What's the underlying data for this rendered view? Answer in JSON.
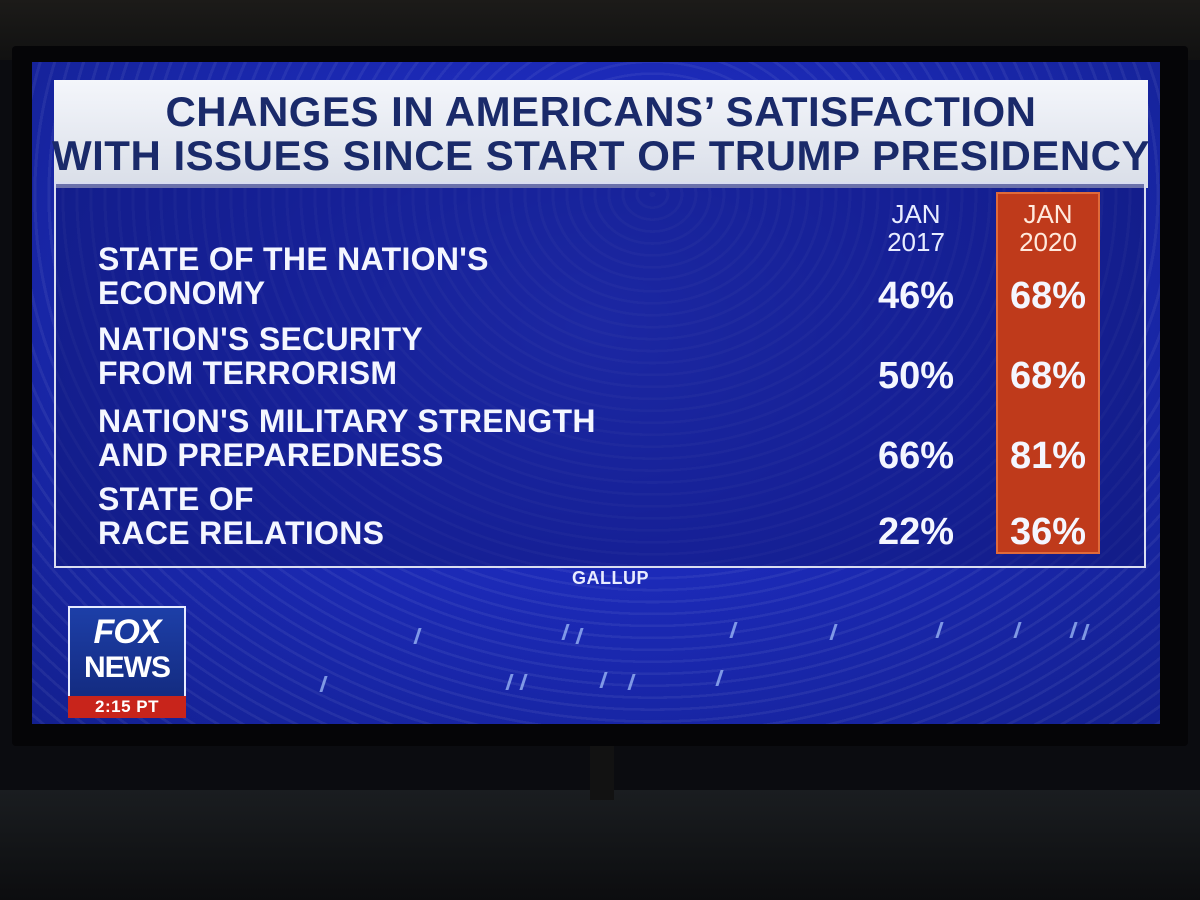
{
  "graphic": {
    "title_lines": [
      "CHANGES IN AMERICANS’ SATISFACTION",
      "WITH ISSUES SINCE START OF TRUMP PRESIDENCY"
    ],
    "columns": [
      {
        "line1": "JAN",
        "line2": "2017"
      },
      {
        "line1": "JAN",
        "line2": "2020"
      }
    ],
    "rows": [
      {
        "label_lines": [
          "STATE OF THE NATION'S",
          "ECONOMY"
        ],
        "values": [
          "46%",
          "68%"
        ]
      },
      {
        "label_lines": [
          "NATION'S SECURITY",
          "FROM TERRORISM"
        ],
        "values": [
          "50%",
          "68%"
        ]
      },
      {
        "label_lines": [
          "NATION'S MILITARY STRENGTH",
          "AND PREPAREDNESS"
        ],
        "values": [
          "66%",
          "81%"
        ]
      },
      {
        "label_lines": [
          "STATE OF",
          "RACE RELATIONS"
        ],
        "values": [
          "22%",
          "36%"
        ]
      }
    ],
    "source": "GALLUP"
  },
  "logo": {
    "line1": "FOX",
    "line2": "NEWS",
    "time": "2:15 PT"
  },
  "colors": {
    "background_blue": "#1c2ab8",
    "highlight_orange": "#bf3a1b",
    "title_text": "#1a2a6a"
  }
}
